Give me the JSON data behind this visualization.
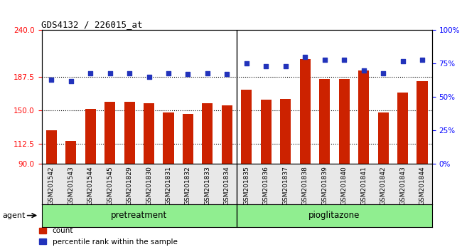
{
  "title": "GDS4132 / 226015_at",
  "samples": [
    "GSM201542",
    "GSM201543",
    "GSM201544",
    "GSM201545",
    "GSM201829",
    "GSM201830",
    "GSM201831",
    "GSM201832",
    "GSM201833",
    "GSM201834",
    "GSM201835",
    "GSM201836",
    "GSM201837",
    "GSM201838",
    "GSM201839",
    "GSM201840",
    "GSM201841",
    "GSM201842",
    "GSM201843",
    "GSM201844"
  ],
  "counts": [
    128,
    116,
    152,
    160,
    160,
    158,
    148,
    146,
    158,
    156,
    173,
    162,
    163,
    208,
    185,
    185,
    195,
    148,
    170,
    183
  ],
  "percentiles": [
    63,
    62,
    68,
    68,
    68,
    65,
    68,
    67,
    68,
    67,
    75,
    73,
    73,
    80,
    78,
    78,
    70,
    68,
    77,
    78
  ],
  "group_labels": [
    "pretreatment",
    "pioglitazone"
  ],
  "group_split": 10,
  "ylim_left": [
    90,
    240
  ],
  "ylim_right": [
    0,
    100
  ],
  "yticks_left": [
    90,
    112.5,
    150,
    187.5,
    240
  ],
  "yticks_right": [
    0,
    25,
    50,
    75,
    100
  ],
  "dotted_vals": [
    112.5,
    150,
    187.5
  ],
  "bar_color": "#cc2200",
  "dot_color": "#2233bb",
  "bar_width": 0.55,
  "legend_count_label": "count",
  "legend_pct_label": "percentile rank within the sample",
  "agent_label": "agent",
  "group_color": "#90ee90",
  "bg_color": "#e8e8e8"
}
